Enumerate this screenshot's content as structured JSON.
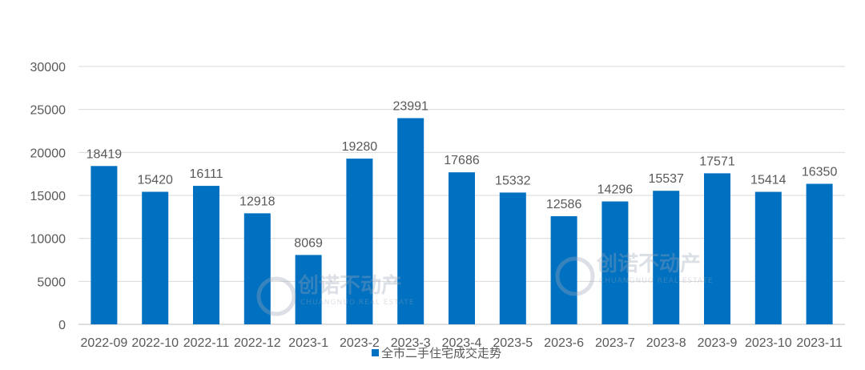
{
  "chart_data": {
    "type": "bar",
    "title": "",
    "xlabel": "",
    "ylabel": "",
    "categories": [
      "2022-09",
      "2022-10",
      "2022-11",
      "2022-12",
      "2023-1",
      "2023-2",
      "2023-3",
      "2023-4",
      "2023-5",
      "2023-6",
      "2023-7",
      "2023-8",
      "2023-9",
      "2023-10",
      "2023-11"
    ],
    "series": [
      {
        "name": "全市二手住宅成交走势",
        "color": "#0070c0",
        "values": [
          18419,
          15420,
          16111,
          12918,
          8069,
          19280,
          23991,
          17686,
          15332,
          12586,
          14296,
          15537,
          17571,
          15414,
          16350
        ]
      }
    ],
    "ylim": [
      0,
      30000
    ],
    "yticks": [
      0,
      5000,
      10000,
      15000,
      20000,
      25000,
      30000
    ],
    "grid": true,
    "legend": "bottom-center",
    "data_labels": true
  },
  "watermarks": [
    {
      "brand": "创诺不动产",
      "subtitle": "CHUANGNUO REAL ESTATE"
    },
    {
      "brand": "创诺不动产",
      "subtitle": "CHUANGNUO REAL ESTATE"
    }
  ]
}
